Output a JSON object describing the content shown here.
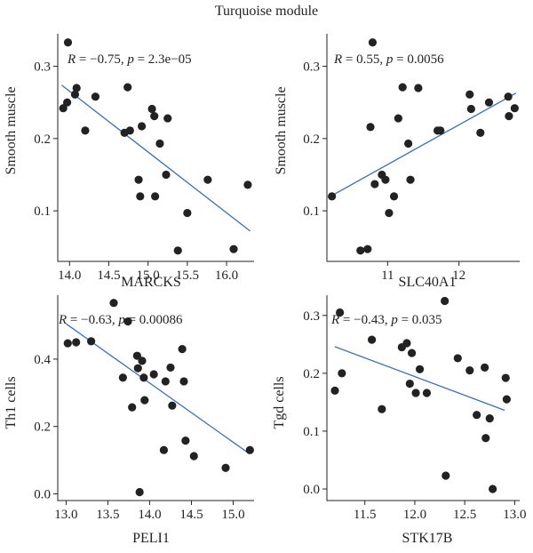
{
  "figure": {
    "title": "Turquoise module",
    "colors": {
      "points": "#222222",
      "fit_line": "#3a6fb5",
      "axis": "#222222"
    }
  },
  "chart_data": [
    {
      "id": "marcks",
      "type": "scatter",
      "xlabel": "MARCKS",
      "ylabel": "Smooth muscle",
      "xlim": [
        13.85,
        16.35
      ],
      "ylim": [
        0.03,
        0.345
      ],
      "xticks": [
        14.0,
        14.5,
        15.0,
        15.5,
        16.0
      ],
      "xtick_labels": [
        "14.0",
        "14.5",
        "15.0",
        "15.5",
        "16.0"
      ],
      "yticks": [
        0.1,
        0.2,
        0.3
      ],
      "ytick_labels": [
        "0.1",
        "0.2",
        "0.3"
      ],
      "annotation": {
        "r_label": "R",
        "r_text": " = −0.75, ",
        "p_label": "p",
        "p_text": " = 2.3e−05"
      },
      "fit": {
        "x": [
          13.9,
          16.3
        ],
        "y": [
          0.274,
          0.072
        ]
      },
      "points": [
        {
          "x": 13.92,
          "y": 0.242
        },
        {
          "x": 13.97,
          "y": 0.25
        },
        {
          "x": 13.98,
          "y": 0.333
        },
        {
          "x": 14.07,
          "y": 0.261
        },
        {
          "x": 14.09,
          "y": 0.27
        },
        {
          "x": 14.2,
          "y": 0.211
        },
        {
          "x": 14.33,
          "y": 0.258
        },
        {
          "x": 14.7,
          "y": 0.208
        },
        {
          "x": 14.74,
          "y": 0.271
        },
        {
          "x": 14.77,
          "y": 0.211
        },
        {
          "x": 14.88,
          "y": 0.143
        },
        {
          "x": 14.9,
          "y": 0.12
        },
        {
          "x": 14.92,
          "y": 0.217
        },
        {
          "x": 15.05,
          "y": 0.241
        },
        {
          "x": 15.08,
          "y": 0.231
        },
        {
          "x": 15.09,
          "y": 0.12
        },
        {
          "x": 15.15,
          "y": 0.193
        },
        {
          "x": 15.23,
          "y": 0.15
        },
        {
          "x": 15.25,
          "y": 0.228
        },
        {
          "x": 15.38,
          "y": 0.045
        },
        {
          "x": 15.5,
          "y": 0.097
        },
        {
          "x": 15.76,
          "y": 0.143
        },
        {
          "x": 16.09,
          "y": 0.047
        },
        {
          "x": 16.27,
          "y": 0.136
        }
      ]
    },
    {
      "id": "slc40a1",
      "type": "scatter",
      "xlabel": "SLC40A1",
      "ylabel": "Smooth muscle",
      "xlim": [
        10.15,
        12.85
      ],
      "ylim": [
        0.03,
        0.345
      ],
      "xticks": [
        11,
        12
      ],
      "xtick_labels": [
        "11",
        "12"
      ],
      "yticks": [
        0.1,
        0.2,
        0.3
      ],
      "ytick_labels": [
        "0.1",
        "0.2",
        "0.3"
      ],
      "annotation": {
        "r_label": "R",
        "r_text": " = 0.55, ",
        "p_label": "p",
        "p_text": " = 0.0056"
      },
      "fit": {
        "x": [
          10.2,
          12.8
        ],
        "y": [
          0.12,
          0.263
        ]
      },
      "points": [
        {
          "x": 10.22,
          "y": 0.12
        },
        {
          "x": 10.62,
          "y": 0.045
        },
        {
          "x": 10.72,
          "y": 0.047
        },
        {
          "x": 10.76,
          "y": 0.216
        },
        {
          "x": 10.79,
          "y": 0.333
        },
        {
          "x": 10.82,
          "y": 0.137
        },
        {
          "x": 10.92,
          "y": 0.15
        },
        {
          "x": 10.97,
          "y": 0.143
        },
        {
          "x": 11.02,
          "y": 0.097
        },
        {
          "x": 11.09,
          "y": 0.12
        },
        {
          "x": 11.15,
          "y": 0.228
        },
        {
          "x": 11.21,
          "y": 0.271
        },
        {
          "x": 11.29,
          "y": 0.193
        },
        {
          "x": 11.32,
          "y": 0.143
        },
        {
          "x": 11.43,
          "y": 0.27
        },
        {
          "x": 11.7,
          "y": 0.211
        },
        {
          "x": 11.74,
          "y": 0.211
        },
        {
          "x": 12.15,
          "y": 0.261
        },
        {
          "x": 12.17,
          "y": 0.241
        },
        {
          "x": 12.3,
          "y": 0.208
        },
        {
          "x": 12.42,
          "y": 0.25
        },
        {
          "x": 12.69,
          "y": 0.258
        },
        {
          "x": 12.7,
          "y": 0.231
        },
        {
          "x": 12.78,
          "y": 0.242
        }
      ]
    },
    {
      "id": "peli1",
      "type": "scatter",
      "xlabel": "PELI1",
      "ylabel": "Th1 cells",
      "xlim": [
        12.9,
        15.25
      ],
      "ylim": [
        -0.02,
        0.59
      ],
      "xticks": [
        13.0,
        13.5,
        14.0,
        14.5,
        15.0
      ],
      "xtick_labels": [
        "13.0",
        "13.5",
        "14.0",
        "14.5",
        "15.0"
      ],
      "yticks": [
        0.0,
        0.2,
        0.4
      ],
      "ytick_labels": [
        "0.0",
        "0.2",
        "0.4"
      ],
      "annotation": {
        "r_label": "R",
        "r_text": " = −0.63, ",
        "p_label": "p",
        "p_text": " = 0.00086"
      },
      "fit": {
        "x": [
          13.0,
          15.2
        ],
        "y": [
          0.505,
          0.118
        ]
      },
      "points": [
        {
          "x": 13.02,
          "y": 0.447
        },
        {
          "x": 13.12,
          "y": 0.45
        },
        {
          "x": 13.3,
          "y": 0.453
        },
        {
          "x": 13.57,
          "y": 0.567
        },
        {
          "x": 13.68,
          "y": 0.345
        },
        {
          "x": 13.74,
          "y": 0.512
        },
        {
          "x": 13.79,
          "y": 0.257
        },
        {
          "x": 13.85,
          "y": 0.41
        },
        {
          "x": 13.86,
          "y": 0.373
        },
        {
          "x": 13.88,
          "y": 0.005
        },
        {
          "x": 13.91,
          "y": 0.395
        },
        {
          "x": 13.93,
          "y": 0.345
        },
        {
          "x": 13.94,
          "y": 0.278
        },
        {
          "x": 14.05,
          "y": 0.355
        },
        {
          "x": 14.17,
          "y": 0.13
        },
        {
          "x": 14.19,
          "y": 0.334
        },
        {
          "x": 14.25,
          "y": 0.375
        },
        {
          "x": 14.27,
          "y": 0.262
        },
        {
          "x": 14.39,
          "y": 0.43
        },
        {
          "x": 14.41,
          "y": 0.334
        },
        {
          "x": 14.43,
          "y": 0.158
        },
        {
          "x": 14.53,
          "y": 0.112
        },
        {
          "x": 14.91,
          "y": 0.077
        },
        {
          "x": 15.2,
          "y": 0.13
        }
      ]
    },
    {
      "id": "stk17b",
      "type": "scatter",
      "xlabel": "STK17B",
      "ylabel": "Tgd cells",
      "xlim": [
        11.12,
        13.05
      ],
      "ylim": [
        -0.02,
        0.335
      ],
      "xticks": [
        11.5,
        12.0,
        12.5,
        13.0
      ],
      "xtick_labels": [
        "11.5",
        "12.0",
        "12.5",
        "13.0"
      ],
      "yticks": [
        0.0,
        0.1,
        0.2,
        0.3
      ],
      "ytick_labels": [
        "0.0",
        "0.1",
        "0.2",
        "0.3"
      ],
      "annotation": {
        "r_label": "R",
        "r_text": " = −0.43, ",
        "p_label": "p",
        "p_text": " = 0.035"
      },
      "fit": {
        "x": [
          11.2,
          12.9
        ],
        "y": [
          0.246,
          0.136
        ]
      },
      "points": [
        {
          "x": 11.2,
          "y": 0.17
        },
        {
          "x": 11.25,
          "y": 0.305
        },
        {
          "x": 11.27,
          "y": 0.2
        },
        {
          "x": 11.57,
          "y": 0.258
        },
        {
          "x": 11.67,
          "y": 0.138
        },
        {
          "x": 11.87,
          "y": 0.245
        },
        {
          "x": 11.92,
          "y": 0.252
        },
        {
          "x": 11.95,
          "y": 0.182
        },
        {
          "x": 11.97,
          "y": 0.235
        },
        {
          "x": 12.01,
          "y": 0.166
        },
        {
          "x": 12.05,
          "y": 0.207
        },
        {
          "x": 12.12,
          "y": 0.166
        },
        {
          "x": 12.3,
          "y": 0.325
        },
        {
          "x": 12.31,
          "y": 0.023
        },
        {
          "x": 12.43,
          "y": 0.226
        },
        {
          "x": 12.55,
          "y": 0.205
        },
        {
          "x": 12.62,
          "y": 0.128
        },
        {
          "x": 12.7,
          "y": 0.21
        },
        {
          "x": 12.71,
          "y": 0.088
        },
        {
          "x": 12.75,
          "y": 0.122
        },
        {
          "x": 12.78,
          "y": 0.0
        },
        {
          "x": 12.91,
          "y": 0.192
        },
        {
          "x": 12.92,
          "y": 0.155
        }
      ]
    }
  ]
}
